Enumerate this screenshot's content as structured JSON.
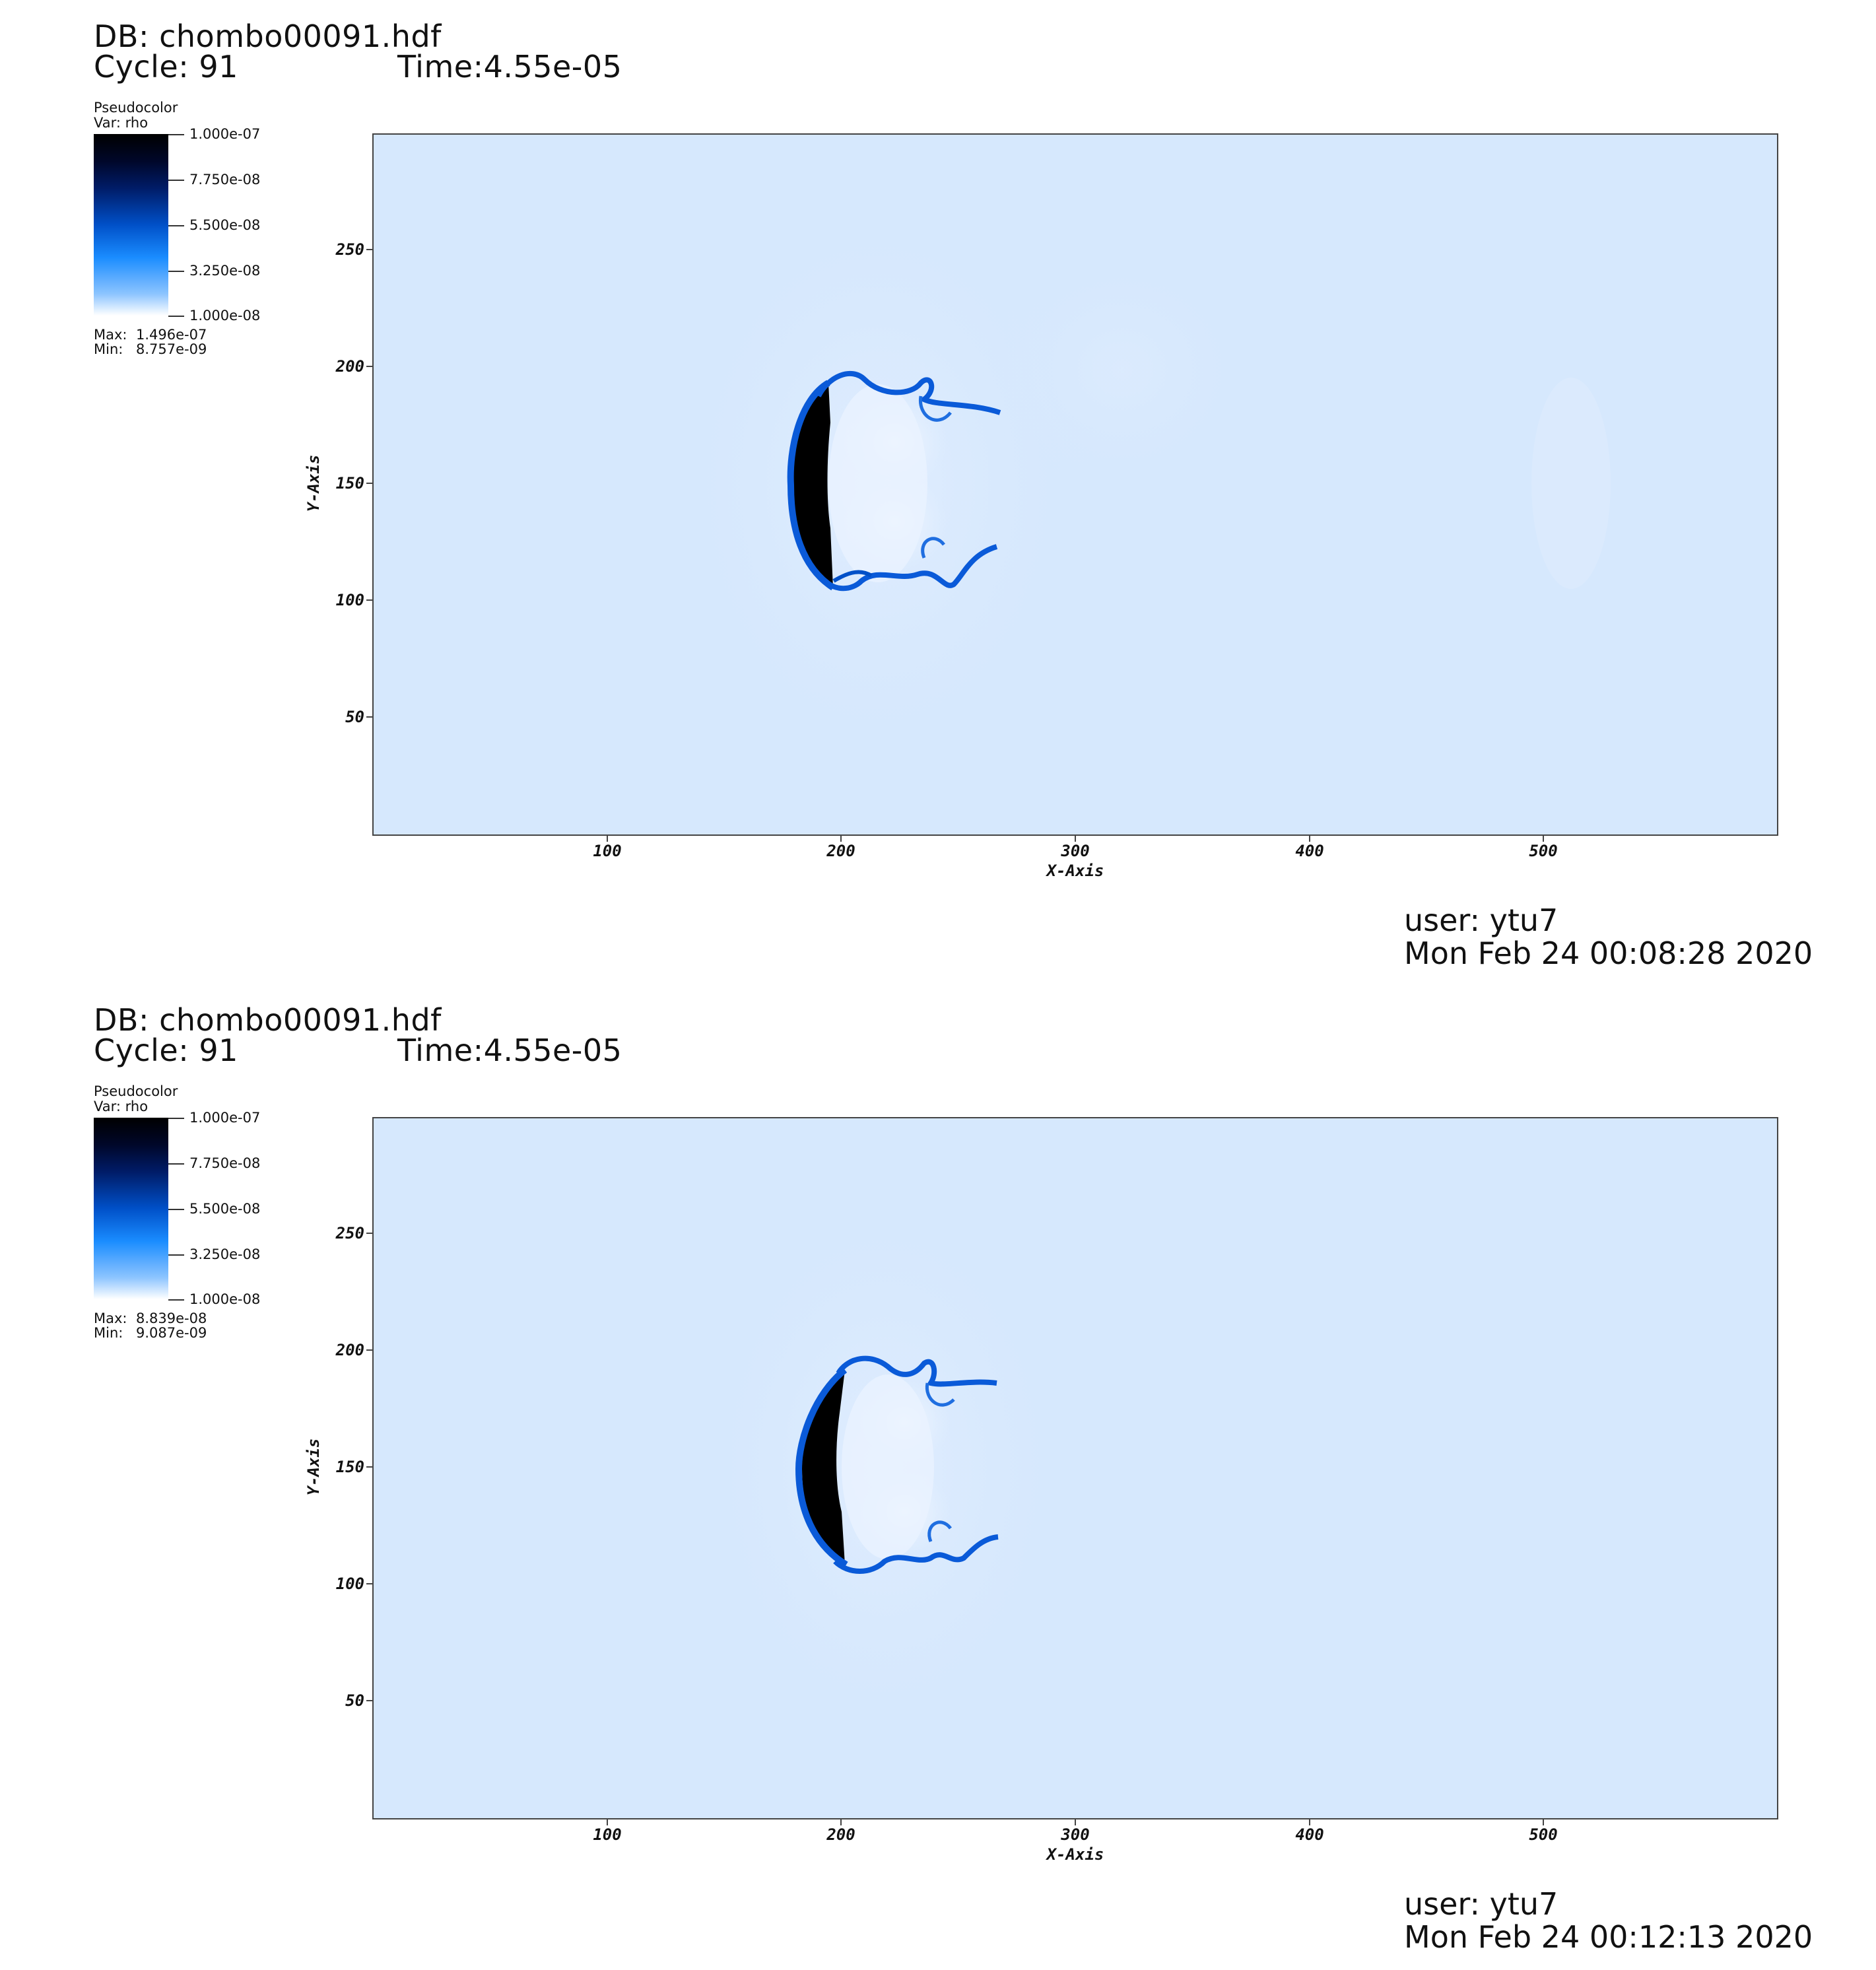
{
  "frames": [
    {
      "db_label": "DB: chombo00091.hdf",
      "cycle_label": "Cycle: 91",
      "time_label": "Time:4.55e-05",
      "legend_plot": "Pseudocolor",
      "legend_var": "Var: rho",
      "colorbar_ticks": [
        "1.000e-07",
        "7.750e-08",
        "5.500e-08",
        "3.250e-08",
        "1.000e-08"
      ],
      "max_label": "Max:",
      "max_value": "1.496e-07",
      "min_label": "Min:",
      "min_value": "8.757e-09",
      "user": "user: ytu7",
      "date": "Mon Feb 24 00:08:28 2020"
    },
    {
      "db_label": "DB: chombo00091.hdf",
      "cycle_label": "Cycle: 91",
      "time_label": "Time:4.55e-05",
      "legend_plot": "Pseudocolor",
      "legend_var": "Var: rho",
      "colorbar_ticks": [
        "1.000e-07",
        "7.750e-08",
        "5.500e-08",
        "3.250e-08",
        "1.000e-08"
      ],
      "max_label": "Max:",
      "max_value": "8.839e-08",
      "min_label": "Min:",
      "min_value": "9.087e-09",
      "user": "user: ytu7",
      "date": "Mon Feb 24 00:12:13 2020"
    }
  ],
  "colors": {
    "background_field": "#d6e8fd",
    "dense_front": "#000820",
    "mid_blue": "#0a5ad8",
    "light_swirl": "#eef5ff"
  },
  "chart_data": [
    {
      "type": "heatmap",
      "plot_type": "Pseudocolor",
      "variable": "rho",
      "xlabel": "X-Axis",
      "ylabel": "Y-Axis",
      "xlim": [
        0,
        600
      ],
      "ylim": [
        0,
        300
      ],
      "xticks": [
        100,
        200,
        300,
        400,
        500
      ],
      "yticks": [
        50,
        100,
        150,
        200,
        250
      ],
      "colorbar_range": [
        1e-08,
        1e-07
      ],
      "data_max": 1.496e-07,
      "data_min": 8.757e-09
    },
    {
      "type": "heatmap",
      "plot_type": "Pseudocolor",
      "variable": "rho",
      "xlabel": "X-Axis",
      "ylabel": "Y-Axis",
      "xlim": [
        0,
        600
      ],
      "ylim": [
        0,
        300
      ],
      "xticks": [
        100,
        200,
        300,
        400,
        500
      ],
      "yticks": [
        50,
        100,
        150,
        200,
        250
      ],
      "colorbar_range": [
        1e-08,
        1e-07
      ],
      "data_max": 8.839e-08,
      "data_min": 9.087e-09
    }
  ]
}
